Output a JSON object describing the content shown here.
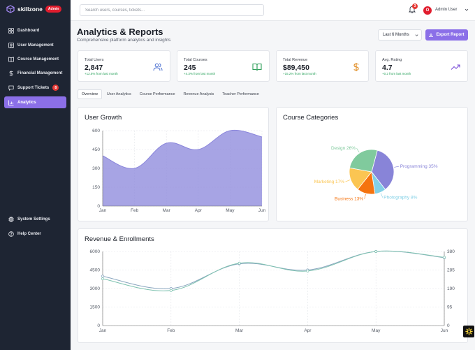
{
  "brand": {
    "name": "skillzone",
    "badge": "Admin"
  },
  "sidebar": {
    "items": [
      {
        "label": "Dashboard",
        "icon": "grid-icon"
      },
      {
        "label": "User Management",
        "icon": "user-icon"
      },
      {
        "label": "Course Management",
        "icon": "book-icon"
      },
      {
        "label": "Financial Management",
        "icon": "dollar-icon"
      },
      {
        "label": "Support Tickets",
        "icon": "chat-icon",
        "badge": "8"
      },
      {
        "label": "Analytics",
        "icon": "chart-icon",
        "active": true
      }
    ],
    "bottom_items": [
      {
        "label": "System Settings",
        "icon": "gear-icon"
      },
      {
        "label": "Help Center",
        "icon": "help-icon"
      }
    ]
  },
  "topbar": {
    "search_placeholder": "Search users, courses, tickets...",
    "notification_count": "3",
    "avatar_initial": "O",
    "user_name": "Admin User"
  },
  "header": {
    "title": "Analytics & Reports",
    "subtitle": "Comprehensive platform analytics and insights",
    "period": "Last 6 Months",
    "export_label": "Export Report"
  },
  "stats": [
    {
      "label": "Total Users",
      "value": "2,847",
      "change": "+12.5% from last month",
      "icon": "users-icon",
      "icon_color": "#4a6fd1"
    },
    {
      "label": "Total Courses",
      "value": "245",
      "change": "+4.3% from last month",
      "icon": "book-open-icon",
      "icon_color": "#2f9e5a"
    },
    {
      "label": "Total Revenue",
      "value": "$89,450",
      "change": "+15.2% from last month",
      "icon": "dollar-icon",
      "icon_color": "#e08a1e"
    },
    {
      "label": "Avg. Rating",
      "value": "4.7",
      "change": "+0.2 from last month",
      "icon": "trend-up-icon",
      "icon_color": "#7b4fd8"
    }
  ],
  "tabs": [
    "Overview",
    "User Analytics",
    "Course Performance",
    "Revenue Analysis",
    "Teacher Performance"
  ],
  "charts": {
    "user_growth_title": "User Growth",
    "categories_title": "Course Categories",
    "revenue_title": "Revenue & Enrollments"
  },
  "chart_data": [
    {
      "type": "area",
      "title": "User Growth",
      "categories": [
        "Jan",
        "Feb",
        "Mar",
        "Apr",
        "May",
        "Jun"
      ],
      "values": [
        400,
        300,
        500,
        450,
        600,
        550
      ],
      "ylim": [
        0,
        600
      ],
      "yticks": [
        0,
        150,
        300,
        450,
        600
      ],
      "grid": true,
      "color": "#8a85db"
    },
    {
      "type": "pie",
      "title": "Course Categories",
      "slices": [
        {
          "label": "Programming",
          "value": 35,
          "color": "#8884d8"
        },
        {
          "label": "Photography",
          "value": 8,
          "color": "#82d0e6"
        },
        {
          "label": "Business",
          "value": 13,
          "color": "#f5730f"
        },
        {
          "label": "Marketing",
          "value": 17,
          "color": "#fbc552"
        },
        {
          "label": "Design",
          "value": 26,
          "color": "#80ca9d"
        }
      ],
      "label_suffix": "%"
    },
    {
      "type": "line",
      "title": "Revenue & Enrollments",
      "categories": [
        "Jan",
        "Feb",
        "Mar",
        "Apr",
        "May",
        "Jun"
      ],
      "grid": true,
      "left_axis": {
        "ylim": [
          0,
          6000
        ],
        "yticks": [
          0,
          1500,
          3000,
          4500,
          6000
        ]
      },
      "right_axis": {
        "ylim": [
          0,
          380
        ],
        "yticks": [
          0,
          95,
          190,
          285,
          380
        ]
      },
      "series": [
        {
          "values": [
            4000,
            3000,
            5000,
            4500,
            6000,
            5500
          ],
          "axis": "left",
          "color": "#8aa6bf"
        },
        {
          "values": [
            240,
            180,
            320,
            280,
            380,
            350
          ],
          "axis": "right",
          "color": "#7ec2b0"
        }
      ]
    }
  ]
}
